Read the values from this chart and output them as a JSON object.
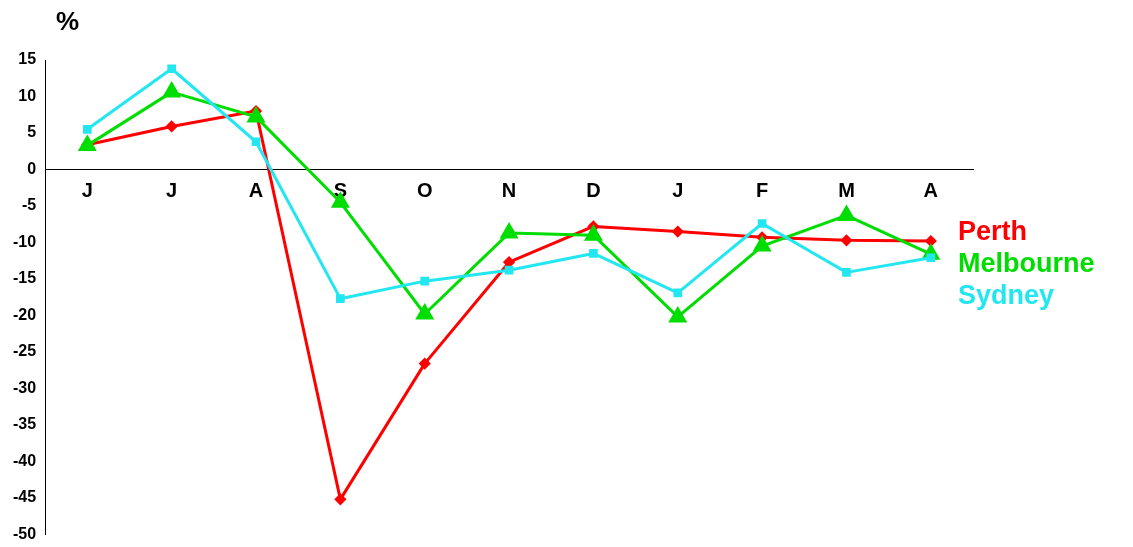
{
  "chart_data": {
    "type": "line",
    "ylabel": "%",
    "categories": [
      "J",
      "J",
      "A",
      "S",
      "O",
      "N",
      "D",
      "J",
      "F",
      "M",
      "A"
    ],
    "series": [
      {
        "name": "Perth",
        "color": "#ff0000",
        "marker": "diamond",
        "values": [
          3.4,
          5.9,
          8.0,
          -45.2,
          -26.6,
          -12.7,
          -7.8,
          -8.5,
          -9.3,
          -9.7,
          -9.8
        ]
      },
      {
        "name": "Melbourne",
        "color": "#00dd00",
        "marker": "triangle",
        "values": [
          3.3,
          10.6,
          7.2,
          -4.5,
          -19.8,
          -8.7,
          -9.0,
          -20.2,
          -10.5,
          -6.3,
          -11.6
        ]
      },
      {
        "name": "Sydney",
        "color": "#22e6f0",
        "marker": "square",
        "values": [
          5.5,
          13.8,
          3.8,
          -17.7,
          -15.3,
          -13.8,
          -11.5,
          -16.9,
          -7.4,
          -14.1,
          -12.1
        ]
      }
    ],
    "ylim": [
      -50,
      15
    ],
    "yticks": [
      -50,
      -45,
      -40,
      -35,
      -30,
      -25,
      -20,
      -15,
      -10,
      -5,
      0,
      5,
      10,
      15
    ],
    "grid": false,
    "legend": "right",
    "line_style": "solid"
  }
}
